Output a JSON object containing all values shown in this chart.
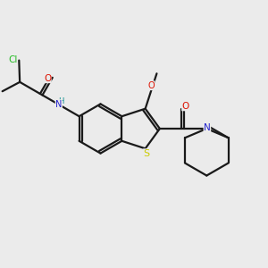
{
  "bg": "#ebebeb",
  "bc": "#1a1a1a",
  "colors": {
    "Cl": "#22bb22",
    "O": "#dd1100",
    "N": "#2222cc",
    "NH": "#008888",
    "S": "#cccc00"
  },
  "lw": 1.6,
  "dbo": 0.01,
  "fs": 7.5,
  "s": 0.092
}
